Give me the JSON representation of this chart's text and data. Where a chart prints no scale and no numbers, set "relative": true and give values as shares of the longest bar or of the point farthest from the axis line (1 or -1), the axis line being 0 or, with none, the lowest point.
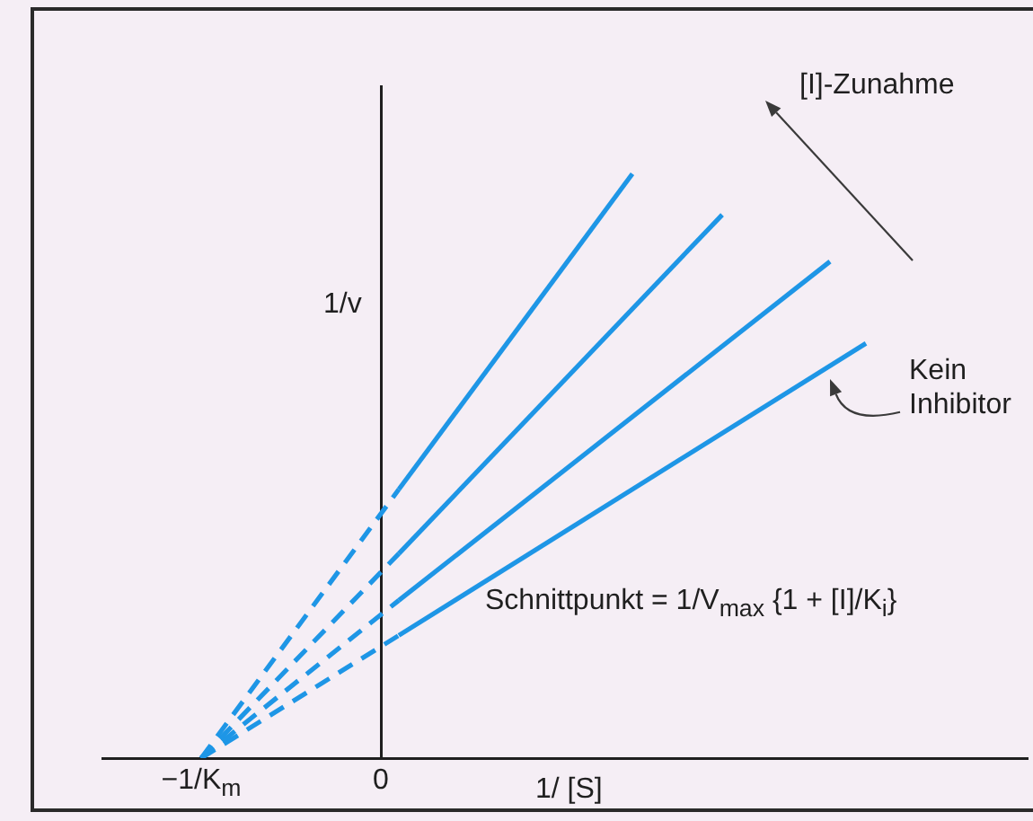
{
  "chart_data": {
    "type": "line",
    "relative": true,
    "xlabel": "1/ [S]",
    "ylabel": "1/v",
    "xlim": [
      -1.55,
      3.6
    ],
    "xticks": [
      {
        "value": -1,
        "label": "−1/K$_{m}$"
      },
      0
    ],
    "tick_labels": "x",
    "series": [
      {
        "color": "#1e96e6",
        "line_style": "dashed",
        "x": [
          -1,
          0.1
        ],
        "values": [
          0,
          0.46
        ]
      },
      {
        "color": "#1e96e6",
        "line_style": "solid",
        "x": [
          0.1,
          1.4
        ],
        "values": [
          0.46,
          1
        ]
      },
      {
        "color": "#1e96e6",
        "line_style": "dashed",
        "x": [
          -1,
          0.1
        ],
        "values": [
          0,
          0.35
        ]
      },
      {
        "color": "#1e96e6",
        "line_style": "solid",
        "x": [
          0.1,
          1.9
        ],
        "values": [
          0.35,
          0.93
        ]
      },
      {
        "color": "#1e96e6",
        "line_style": "dashed",
        "x": [
          -1,
          0.1
        ],
        "values": [
          0,
          0.27
        ]
      },
      {
        "color": "#1e96e6",
        "line_style": "solid",
        "x": [
          0.1,
          2.5
        ],
        "values": [
          0.27,
          0.85
        ]
      },
      {
        "color": "#1e96e6",
        "line_style": "dashed",
        "x": [
          -1,
          0.1
        ],
        "values": [
          0,
          0.21
        ]
      },
      {
        "color": "#1e96e6",
        "line_style": "solid",
        "x": [
          0.1,
          2.7
        ],
        "values": [
          0.21,
          0.71
        ]
      }
    ],
    "annotations": [
      "[I]-Zunahme",
      {
        "text": "Kein Inhibitor",
        "x": 2.5,
        "y": 0.65
      },
      "Schnittpunkt = 1/V$_{max}$ {1 + [I]/K$_{i}$}"
    ]
  }
}
